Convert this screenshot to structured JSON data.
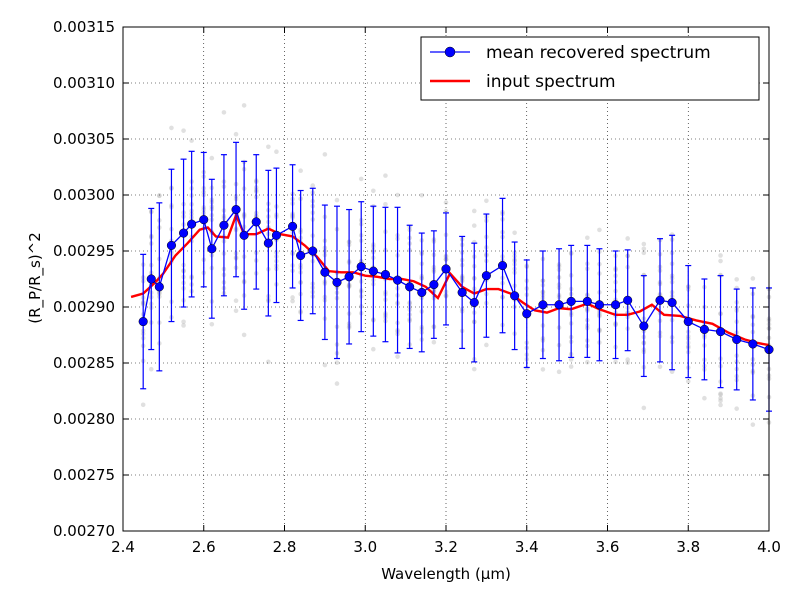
{
  "chart_data": {
    "type": "line",
    "xlabel": "Wavelength (μm)",
    "ylabel": "(R_P/R_s)^2",
    "xlim": [
      2.4,
      4.0
    ],
    "ylim": [
      0.0027,
      0.00315
    ],
    "xticks": [
      2.4,
      2.6,
      2.8,
      3.0,
      3.2,
      3.4,
      3.6,
      3.8,
      4.0
    ],
    "xtick_labels": [
      "2.4",
      "2.6",
      "2.8",
      "3.0",
      "3.2",
      "3.4",
      "3.6",
      "3.8",
      "4.0"
    ],
    "yticks": [
      0.0027,
      0.00275,
      0.0028,
      0.00285,
      0.0029,
      0.00295,
      0.003,
      0.00305,
      0.0031,
      0.00315
    ],
    "ytick_labels": [
      "0.00270",
      "0.00275",
      "0.00280",
      "0.00285",
      "0.00290",
      "0.00295",
      "0.00300",
      "0.00305",
      "0.00310",
      "0.00315"
    ],
    "grid": true,
    "legend_position": "top-right",
    "colors": {
      "mean": "#0000ff",
      "input": "#ff0000",
      "samples": "#bbbbbb"
    },
    "series": [
      {
        "name": "mean recovered spectrum",
        "marker": "circle",
        "x": [
          2.45,
          2.47,
          2.49,
          2.52,
          2.55,
          2.57,
          2.6,
          2.62,
          2.65,
          2.68,
          2.7,
          2.73,
          2.76,
          2.78,
          2.82,
          2.84,
          2.87,
          2.9,
          2.93,
          2.96,
          2.99,
          3.02,
          3.05,
          3.08,
          3.11,
          3.14,
          3.17,
          3.2,
          3.24,
          3.27,
          3.3,
          3.34,
          3.37,
          3.4,
          3.44,
          3.48,
          3.51,
          3.55,
          3.58,
          3.62,
          3.65,
          3.69,
          3.73,
          3.76,
          3.8,
          3.84,
          3.88,
          3.92,
          3.96,
          4.0
        ],
        "y": [
          0.002887,
          0.002925,
          0.002918,
          0.002955,
          0.002966,
          0.002974,
          0.002978,
          0.002952,
          0.002973,
          0.002987,
          0.002964,
          0.002976,
          0.002957,
          0.002964,
          0.002972,
          0.002946,
          0.00295,
          0.002931,
          0.002922,
          0.002927,
          0.002936,
          0.002932,
          0.002929,
          0.002924,
          0.002918,
          0.002913,
          0.00292,
          0.002934,
          0.002913,
          0.002904,
          0.002928,
          0.002937,
          0.00291,
          0.002894,
          0.002902,
          0.002902,
          0.002905,
          0.002905,
          0.002902,
          0.002902,
          0.002906,
          0.002883,
          0.002906,
          0.002904,
          0.002887,
          0.00288,
          0.002878,
          0.002871,
          0.002867,
          0.002862
        ],
        "err": [
          6e-05,
          6.3e-05,
          7.5e-05,
          6.8e-05,
          6.6e-05,
          6.5e-05,
          6e-05,
          6.2e-05,
          6.3e-05,
          6e-05,
          6.6e-05,
          6e-05,
          6.5e-05,
          6e-05,
          5.5e-05,
          5.8e-05,
          5.6e-05,
          6e-05,
          6.8e-05,
          6e-05,
          5.8e-05,
          5.8e-05,
          6e-05,
          6.5e-05,
          5.5e-05,
          5.3e-05,
          4.8e-05,
          5e-05,
          5e-05,
          5.3e-05,
          5.5e-05,
          6e-05,
          4.8e-05,
          4.8e-05,
          4.8e-05,
          5e-05,
          5e-05,
          5e-05,
          5e-05,
          4.8e-05,
          4.5e-05,
          4.5e-05,
          5.5e-05,
          6e-05,
          5e-05,
          4.5e-05,
          5e-05,
          4.5e-05,
          5e-05,
          5.5e-05
        ]
      },
      {
        "name": "input spectrum",
        "x": [
          2.42,
          2.45,
          2.48,
          2.5,
          2.53,
          2.56,
          2.59,
          2.61,
          2.63,
          2.66,
          2.68,
          2.7,
          2.73,
          2.76,
          2.79,
          2.82,
          2.85,
          2.88,
          2.91,
          2.94,
          2.97,
          3.0,
          3.03,
          3.06,
          3.09,
          3.12,
          3.15,
          3.18,
          3.21,
          3.24,
          3.27,
          3.3,
          3.33,
          3.36,
          3.39,
          3.42,
          3.45,
          3.48,
          3.51,
          3.55,
          3.58,
          3.62,
          3.65,
          3.68,
          3.71,
          3.74,
          3.78,
          3.82,
          3.86,
          3.9,
          3.94,
          3.97,
          4.0
        ],
        "y": [
          0.002909,
          0.002912,
          0.002922,
          0.00293,
          0.002946,
          0.002957,
          0.002969,
          0.002971,
          0.002963,
          0.002962,
          0.002982,
          0.002965,
          0.002965,
          0.00297,
          0.002965,
          0.002963,
          0.002955,
          0.002945,
          0.002932,
          0.002931,
          0.002931,
          0.002928,
          0.002927,
          0.002925,
          0.002925,
          0.002923,
          0.002918,
          0.002908,
          0.00293,
          0.002918,
          0.002912,
          0.002916,
          0.002916,
          0.002912,
          0.002904,
          0.002897,
          0.002895,
          0.002899,
          0.002898,
          0.002903,
          0.002898,
          0.002893,
          0.002893,
          0.002896,
          0.002902,
          0.002893,
          0.002892,
          0.002888,
          0.002885,
          0.002877,
          0.002871,
          0.002868,
          0.002866
        ]
      }
    ]
  }
}
